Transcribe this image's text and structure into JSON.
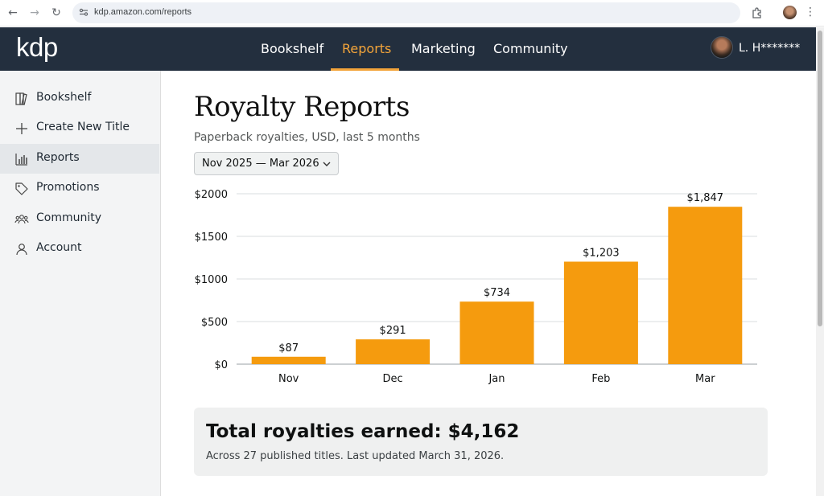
{
  "browser": {
    "url": "kdp.amazon.com/reports"
  },
  "header": {
    "logo": "kdp",
    "nav": [
      {
        "label": "Bookshelf",
        "active": false
      },
      {
        "label": "Reports",
        "active": true
      },
      {
        "label": "Marketing",
        "active": false
      },
      {
        "label": "Community",
        "active": false
      }
    ],
    "user_name": "L. H*******",
    "accent_color": "#f3a43a",
    "header_bg": "#232f3e"
  },
  "sidebar": {
    "items": [
      {
        "label": "Bookshelf",
        "icon": "book-icon",
        "active": false
      },
      {
        "label": "Create New Title",
        "icon": "plus-icon",
        "active": false
      },
      {
        "label": "Reports",
        "icon": "bar-chart-icon",
        "active": true
      },
      {
        "label": "Promotions",
        "icon": "tag-icon",
        "active": false
      },
      {
        "label": "Community",
        "icon": "people-icon",
        "active": false
      },
      {
        "label": "Account",
        "icon": "user-icon",
        "active": false
      }
    ]
  },
  "main": {
    "title": "Royalty Reports",
    "subtitle": "Paperback royalties, USD, last 5 months",
    "date_range": "Nov 2025 — Mar 2026"
  },
  "chart_data": {
    "type": "bar",
    "title": "",
    "xlabel": "",
    "ylabel": "",
    "categories": [
      "Nov",
      "Dec",
      "Jan",
      "Feb",
      "Mar"
    ],
    "values": [
      87,
      291,
      734,
      1203,
      1847
    ],
    "value_labels": [
      "$87",
      "$291",
      "$734",
      "$1,203",
      "$1,847"
    ],
    "y_ticks": [
      0,
      500,
      1000,
      1500,
      2000
    ],
    "y_tick_labels": [
      "$0",
      "$500",
      "$1000",
      "$1500",
      "$2000"
    ],
    "ylim": [
      0,
      2000
    ],
    "grid": true,
    "bar_color": "#f59b0e"
  },
  "summary": {
    "title": "Total royalties earned: $4,162",
    "note": "Across 27 published titles. Last updated March 31, 2026."
  }
}
